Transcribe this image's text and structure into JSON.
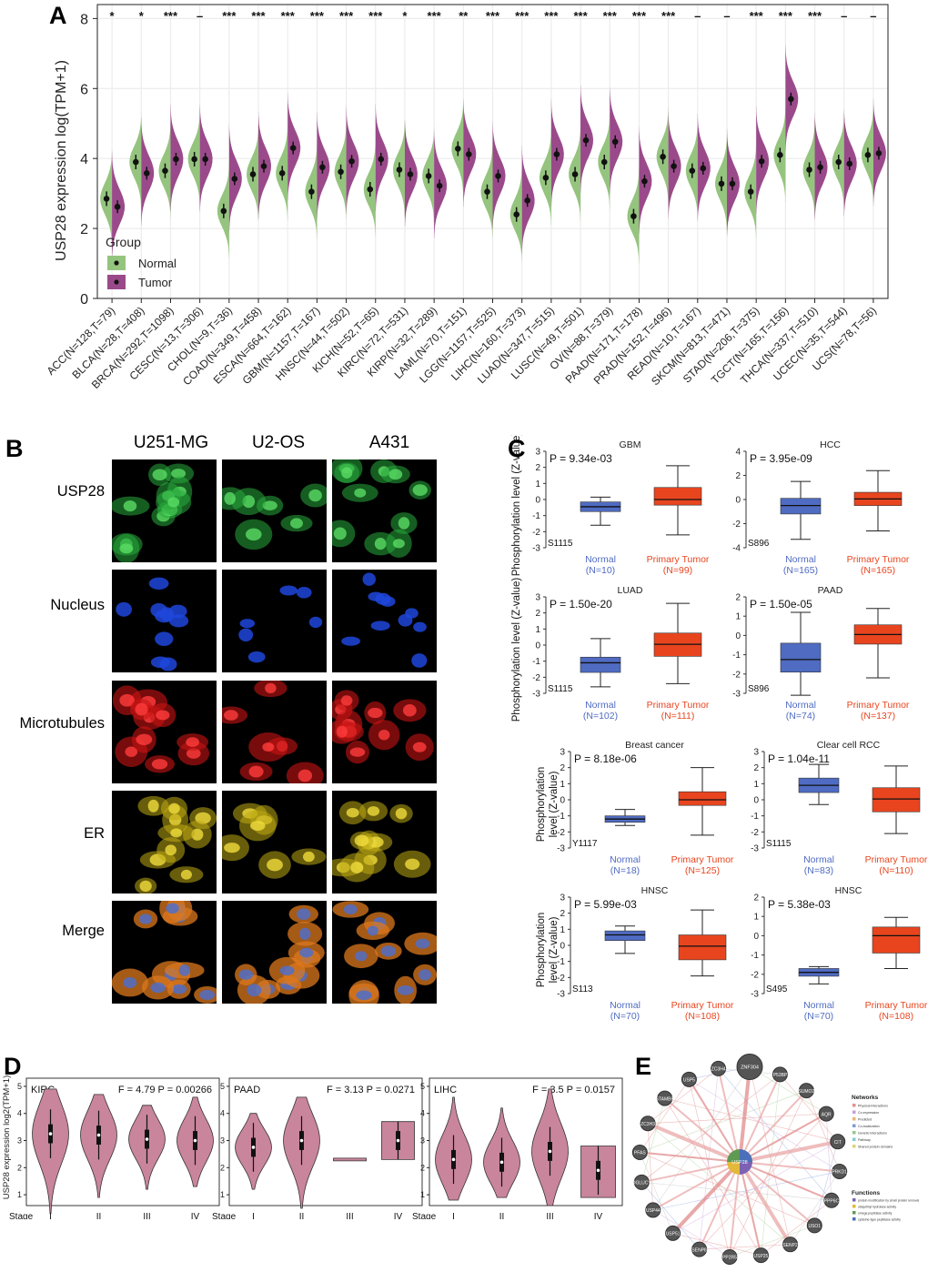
{
  "panels": {
    "a": "A",
    "b": "B",
    "c": "C",
    "d": "D",
    "e": "E"
  },
  "panel_a": {
    "chart_data": {
      "type": "split-violin",
      "ylabel": "USP28 expression log(TPM+1)",
      "ylim": [
        0,
        8.4
      ],
      "yticks": [
        0,
        2,
        4,
        6,
        8
      ],
      "legend_title": "Group",
      "legend": [
        {
          "name": "Normal",
          "color": "#95c47e"
        },
        {
          "name": "Tumor",
          "color": "#9a4a8a"
        }
      ],
      "categories": [
        {
          "label": "ACC(N=128,T=79)",
          "sig": "*",
          "normal": 2.85,
          "tumor": 2.62
        },
        {
          "label": "BLCA(N=28,T=408)",
          "sig": "*",
          "normal": 3.9,
          "tumor": 3.58
        },
        {
          "label": "BRCA(N=292,T=1098)",
          "sig": "***",
          "normal": 3.65,
          "tumor": 3.98
        },
        {
          "label": "CESC(N=13,T=306)",
          "sig": "–",
          "normal": 3.98,
          "tumor": 3.98
        },
        {
          "label": "CHOL(N=9,T=36)",
          "sig": "***",
          "normal": 2.5,
          "tumor": 3.42
        },
        {
          "label": "COAD(N=349,T=458)",
          "sig": "***",
          "normal": 3.55,
          "tumor": 3.78
        },
        {
          "label": "ESCA(N=664,T=162)",
          "sig": "***",
          "normal": 3.58,
          "tumor": 4.3
        },
        {
          "label": "GBM(N=1157,T=167)",
          "sig": "***",
          "normal": 3.05,
          "tumor": 3.75
        },
        {
          "label": "HNSC(N=44,T=502)",
          "sig": "***",
          "normal": 3.62,
          "tumor": 3.92
        },
        {
          "label": "KICH(N=52,T=65)",
          "sig": "***",
          "normal": 3.12,
          "tumor": 3.98
        },
        {
          "label": "KIRC(N=72,T=531)",
          "sig": "*",
          "normal": 3.68,
          "tumor": 3.55
        },
        {
          "label": "KIRP(N=32,T=289)",
          "sig": "***",
          "normal": 3.5,
          "tumor": 3.22
        },
        {
          "label": "LAML(N=70,T=151)",
          "sig": "**",
          "normal": 4.28,
          "tumor": 4.12
        },
        {
          "label": "LGG(N=1157,T=525)",
          "sig": "***",
          "normal": 3.05,
          "tumor": 3.5
        },
        {
          "label": "LIHC(N=160,T=373)",
          "sig": "***",
          "normal": 2.4,
          "tumor": 2.8
        },
        {
          "label": "LUAD(N=347,T=515)",
          "sig": "***",
          "normal": 3.45,
          "tumor": 4.12
        },
        {
          "label": "LUSC(N=49,T=501)",
          "sig": "***",
          "normal": 3.55,
          "tumor": 4.52
        },
        {
          "label": "OV(N=88,T=379)",
          "sig": "***",
          "normal": 3.9,
          "tumor": 4.48
        },
        {
          "label": "PAAD(N=171,T=178)",
          "sig": "***",
          "normal": 2.35,
          "tumor": 3.35
        },
        {
          "label": "PRAD(N=152,T=496)",
          "sig": "***",
          "normal": 4.05,
          "tumor": 3.78
        },
        {
          "label": "READ(N=10,T=167)",
          "sig": "–",
          "normal": 3.65,
          "tumor": 3.72
        },
        {
          "label": "SKCM(N=813,T=471)",
          "sig": "–",
          "normal": 3.28,
          "tumor": 3.28
        },
        {
          "label": "STAD(N=206,T=375)",
          "sig": "***",
          "normal": 3.05,
          "tumor": 3.92
        },
        {
          "label": "TGCT(N=165,T=156)",
          "sig": "***",
          "normal": 4.1,
          "tumor": 5.7
        },
        {
          "label": "THCA(N=337,T=510)",
          "sig": "***",
          "normal": 3.68,
          "tumor": 3.75
        },
        {
          "label": "UCEC(N=35,T=544)",
          "sig": "–",
          "normal": 3.9,
          "tumor": 3.85
        },
        {
          "label": "UCS(N=78,T=56)",
          "sig": "–",
          "normal": 4.1,
          "tumor": 4.15
        }
      ]
    }
  },
  "panel_b": {
    "columns": [
      "U251-MG",
      "U2-OS",
      "A431"
    ],
    "rows": [
      "USP28",
      "Nucleus",
      "Microtubules",
      "ER",
      "Merge"
    ]
  },
  "panel_c": {
    "ylabel": "Phosphorylation level (Z-value)",
    "chart_data": [
      {
        "type": "box",
        "title": "GBM",
        "p": "P = 9.34e-03",
        "site": "S1115",
        "ylim": [
          -3,
          3
        ],
        "yticks": [
          -3,
          -2,
          -1,
          0,
          1,
          2,
          3
        ],
        "groups": [
          {
            "name": "Normal",
            "n": "(N=10)",
            "q1": -0.75,
            "median": -0.45,
            "q3": -0.15,
            "min": -1.6,
            "max": 0.15
          },
          {
            "name": "Primary Tumor",
            "n": "(N=99)",
            "q1": -0.35,
            "median": 0.0,
            "q3": 0.75,
            "min": -2.2,
            "max": 2.1
          }
        ]
      },
      {
        "type": "box",
        "title": "HCC",
        "p": "P = 3.95e-09",
        "site": "S896",
        "ylim": [
          -4,
          4
        ],
        "yticks": [
          -4,
          -2,
          0,
          2,
          4
        ],
        "groups": [
          {
            "name": "Normal",
            "n": "(N=165)",
            "q1": -1.2,
            "median": -0.5,
            "q3": 0.1,
            "min": -3.3,
            "max": 1.5
          },
          {
            "name": "Primary Tumor",
            "n": "(N=165)",
            "q1": -0.5,
            "median": 0.05,
            "q3": 0.6,
            "min": -2.6,
            "max": 2.4
          }
        ]
      },
      {
        "type": "box",
        "title": "LUAD",
        "p": "P = 1.50e-20",
        "site": "S1115",
        "ylim": [
          -3,
          3
        ],
        "yticks": [
          -3,
          -2,
          -1,
          0,
          1,
          2,
          3
        ],
        "groups": [
          {
            "name": "Normal",
            "n": "(N=102)",
            "q1": -1.7,
            "median": -1.1,
            "q3": -0.75,
            "min": -2.6,
            "max": 0.4
          },
          {
            "name": "Primary Tumor",
            "n": "(N=111)",
            "q1": -0.7,
            "median": 0.05,
            "q3": 0.75,
            "min": -2.4,
            "max": 2.6
          }
        ]
      },
      {
        "type": "box",
        "title": "PAAD",
        "p": "P = 1.50e-05",
        "site": "S896",
        "ylim": [
          -3,
          2
        ],
        "yticks": [
          -3,
          -2,
          -1,
          0,
          1,
          2
        ],
        "groups": [
          {
            "name": "Normal",
            "n": "(N=74)",
            "q1": -1.9,
            "median": -1.25,
            "q3": -0.4,
            "min": -3.1,
            "max": 1.2
          },
          {
            "name": "Primary Tumor",
            "n": "(N=137)",
            "q1": -0.45,
            "median": 0.05,
            "q3": 0.55,
            "min": -2.2,
            "max": 1.4
          }
        ]
      },
      {
        "type": "box",
        "title": "Breast cancer",
        "p": "P = 8.18e-06",
        "site": "Y1117",
        "ylim": [
          -3,
          3
        ],
        "yticks": [
          -3,
          -2,
          -1,
          0,
          1,
          2,
          3
        ],
        "groups": [
          {
            "name": "Normal",
            "n": "(N=18)",
            "q1": -1.4,
            "median": -1.2,
            "q3": -1.0,
            "min": -1.6,
            "max": -0.6
          },
          {
            "name": "Primary Tumor",
            "n": "(N=125)",
            "q1": -0.35,
            "median": 0.0,
            "q3": 0.5,
            "min": -2.2,
            "max": 2.0
          }
        ]
      },
      {
        "type": "box",
        "title": "Clear cell RCC",
        "p": "P = 1.04e-11",
        "site": "S1115",
        "ylim": [
          -3,
          3
        ],
        "yticks": [
          -3,
          -2,
          -1,
          0,
          1,
          2,
          3
        ],
        "groups": [
          {
            "name": "Normal",
            "n": "(N=83)",
            "q1": 0.45,
            "median": 0.9,
            "q3": 1.35,
            "min": -0.3,
            "max": 2.2
          },
          {
            "name": "Primary Tumor",
            "n": "(N=110)",
            "q1": -0.75,
            "median": 0.05,
            "q3": 0.75,
            "min": -2.1,
            "max": 2.1
          }
        ]
      },
      {
        "type": "box",
        "title": "HNSC",
        "p": "P = 5.99e-03",
        "site": "S113",
        "ylim": [
          -3,
          3
        ],
        "yticks": [
          -3,
          -2,
          -1,
          0,
          1,
          2,
          3
        ],
        "groups": [
          {
            "name": "Normal",
            "n": "(N=70)",
            "q1": 0.3,
            "median": 0.65,
            "q3": 0.9,
            "min": -0.5,
            "max": 1.2
          },
          {
            "name": "Primary Tumor",
            "n": "(N=108)",
            "q1": -0.9,
            "median": -0.05,
            "q3": 0.65,
            "min": -1.9,
            "max": 2.2
          }
        ]
      },
      {
        "type": "box",
        "title": "HNSC",
        "p": "P = 5.38e-03",
        "site": "S495",
        "ylim": [
          -3,
          2
        ],
        "yticks": [
          -3,
          -2,
          -1,
          0,
          1,
          2
        ],
        "groups": [
          {
            "name": "Normal",
            "n": "(N=70)",
            "q1": -2.1,
            "median": -1.9,
            "q3": -1.7,
            "min": -2.5,
            "max": -1.6
          },
          {
            "name": "Primary Tumor",
            "n": "(N=108)",
            "q1": -0.9,
            "median": 0.0,
            "q3": 0.45,
            "min": -1.7,
            "max": 0.95
          }
        ]
      }
    ]
  },
  "panel_d": {
    "ylabel": "USP28 expression log2(TPM+1)",
    "stage_label": "Stage",
    "chart_data": [
      {
        "type": "violin",
        "title": "KIRC",
        "stat": "F = 4.79  P = 0.00266",
        "ylim": [
          0.6,
          5.3
        ],
        "yticks": [
          1,
          2,
          3,
          4,
          5
        ],
        "stages": [
          "I",
          "II",
          "III",
          "IV"
        ],
        "medians": [
          3.25,
          3.2,
          3.05,
          3.0
        ],
        "ranges": [
          [
            0.3,
            4.9
          ],
          [
            0.9,
            4.7
          ],
          [
            1.2,
            4.3
          ],
          [
            1.3,
            4.6
          ]
        ]
      },
      {
        "type": "violin",
        "title": "PAAD",
        "stat": "F = 3.13  P = 0.0271",
        "ylim": [
          0.6,
          5.3
        ],
        "yticks": [
          1,
          2,
          3,
          4,
          5
        ],
        "stages": [
          "I",
          "II",
          "III",
          "IV"
        ],
        "medians": [
          2.75,
          3.0,
          2.3,
          3.0
        ],
        "ranges": [
          [
            1.2,
            4.0
          ],
          [
            0.5,
            4.6
          ],
          [
            2.25,
            2.35
          ],
          [
            2.3,
            3.7
          ]
        ]
      },
      {
        "type": "violin",
        "title": "LIHC",
        "stat": "F = 3.5  P = 0.0157",
        "ylim": [
          0.6,
          5.3
        ],
        "yticks": [
          1,
          2,
          3,
          4,
          5
        ],
        "stages": [
          "I",
          "II",
          "III",
          "IV"
        ],
        "medians": [
          2.3,
          2.2,
          2.6,
          1.9
        ],
        "ranges": [
          [
            0.8,
            4.6
          ],
          [
            0.9,
            4.2
          ],
          [
            0.6,
            4.9
          ],
          [
            0.9,
            2.8
          ]
        ]
      }
    ]
  },
  "panel_e": {
    "center": "USP28",
    "nodes": [
      "ZNF304",
      "TP53BP1",
      "SUMO2",
      "AQR",
      "CIT",
      "PRKD1",
      "PPP6C",
      "USO1",
      "SENP2",
      "USP25",
      "PPP2R5B",
      "SENP8",
      "USP51",
      "USP44",
      "DGLUCY",
      "PFAS",
      "ZC3H3",
      "STAMBP",
      "USP5",
      "ZC3H4"
    ],
    "legend_networks_title": "Networks",
    "networks": [
      {
        "label": "Physical Interactions",
        "color": "#e58f8f"
      },
      {
        "label": "Co-expression",
        "color": "#c6a0d6"
      },
      {
        "label": "Predicted",
        "color": "#f0b36e"
      },
      {
        "label": "Co-localization",
        "color": "#7d9cd6"
      },
      {
        "label": "Genetic Interactions",
        "color": "#8fc98a"
      },
      {
        "label": "Pathway",
        "color": "#7ecdd6"
      },
      {
        "label": "Shared protein domains",
        "color": "#e2d27a"
      }
    ],
    "legend_functions_title": "Functions",
    "functions": [
      {
        "label": "protein modification by small protein removal",
        "color": "#7b62b3"
      },
      {
        "label": "ubiquitinyl hydrolase activity",
        "color": "#e2b93a"
      },
      {
        "label": "omega peptidase activity",
        "color": "#5f9a53"
      },
      {
        "label": "cysteine-type peptidase activity",
        "color": "#4b6fb8"
      }
    ]
  }
}
